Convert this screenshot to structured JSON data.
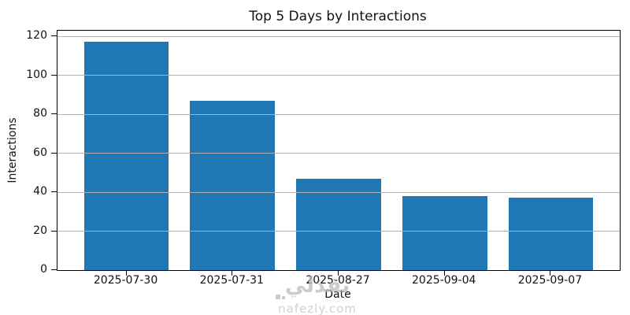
{
  "figure": {
    "title": "Top 5 Days by Interactions",
    "xlabel": "Date",
    "ylabel": "Interactions"
  },
  "chart_data": {
    "type": "bar",
    "title": "Top 5 Days by Interactions",
    "xlabel": "Date",
    "ylabel": "Interactions",
    "categories": [
      "2025-07-30",
      "2025-07-31",
      "2025-08-27",
      "2025-09-04",
      "2025-09-07"
    ],
    "values": [
      117,
      87,
      47,
      38,
      37
    ],
    "yticks": [
      0,
      20,
      40,
      60,
      80,
      100,
      120
    ],
    "ylim": [
      0,
      122.85
    ],
    "grid": true,
    "grid_axis": "y",
    "grid_over_bars": true,
    "legend": false,
    "bar_color": "#1f77b4",
    "grid_color": "#b0b0b0",
    "bar_width_fraction": 0.8,
    "x_margin_categories": 0.65
  },
  "watermark": {
    "logo_text": "نفذلي",
    "site_text": "nafezly.com"
  }
}
